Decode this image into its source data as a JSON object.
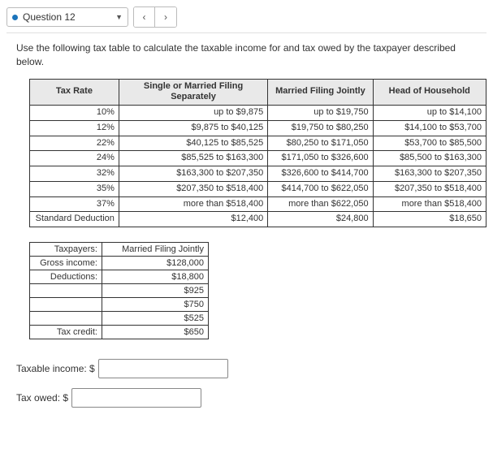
{
  "navigation": {
    "question_label": "Question 12",
    "prev_symbol": "‹",
    "next_symbol": "›"
  },
  "prompt": "Use the following tax table to calculate the taxable income for and tax owed by the taxpayer described below.",
  "tax_table": {
    "headers": {
      "rate": "Tax Rate",
      "single": "Single or Married Filing Separately",
      "joint": "Married Filing Jointly",
      "head": "Head of Household"
    },
    "rows": [
      {
        "rate": "10%",
        "single": "up to $9,875",
        "joint": "up to $19,750",
        "head": "up to $14,100"
      },
      {
        "rate": "12%",
        "single": "$9,875 to $40,125",
        "joint": "$19,750 to $80,250",
        "head": "$14,100 to $53,700"
      },
      {
        "rate": "22%",
        "single": "$40,125 to $85,525",
        "joint": "$80,250 to $171,050",
        "head": "$53,700 to $85,500"
      },
      {
        "rate": "24%",
        "single": "$85,525 to $163,300",
        "joint": "$171,050 to $326,600",
        "head": "$85,500 to $163,300"
      },
      {
        "rate": "32%",
        "single": "$163,300 to $207,350",
        "joint": "$326,600 to $414,700",
        "head": "$163,300 to $207,350"
      },
      {
        "rate": "35%",
        "single": "$207,350 to $518,400",
        "joint": "$414,700 to $622,050",
        "head": "$207,350 to $518,400"
      },
      {
        "rate": "37%",
        "single": "more than $518,400",
        "joint": "more than $622,050",
        "head": "more than $518,400"
      },
      {
        "rate": "Standard Deduction",
        "single": "$12,400",
        "joint": "$24,800",
        "head": "$18,650"
      }
    ]
  },
  "taxpayer": {
    "rows": [
      {
        "label": "Taxpayers:",
        "value": "Married Filing Jointly"
      },
      {
        "label": "Gross income:",
        "value": "$128,000"
      },
      {
        "label": "Deductions:",
        "value": "$18,800"
      },
      {
        "label": "",
        "value": "$925"
      },
      {
        "label": "",
        "value": "$750"
      },
      {
        "label": "",
        "value": "$525"
      },
      {
        "label": "Tax credit:",
        "value": "$650"
      }
    ]
  },
  "answers": {
    "taxable_label": "Taxable income: $",
    "taxable_value": "",
    "owed_label": "Tax owed: $",
    "owed_value": ""
  }
}
